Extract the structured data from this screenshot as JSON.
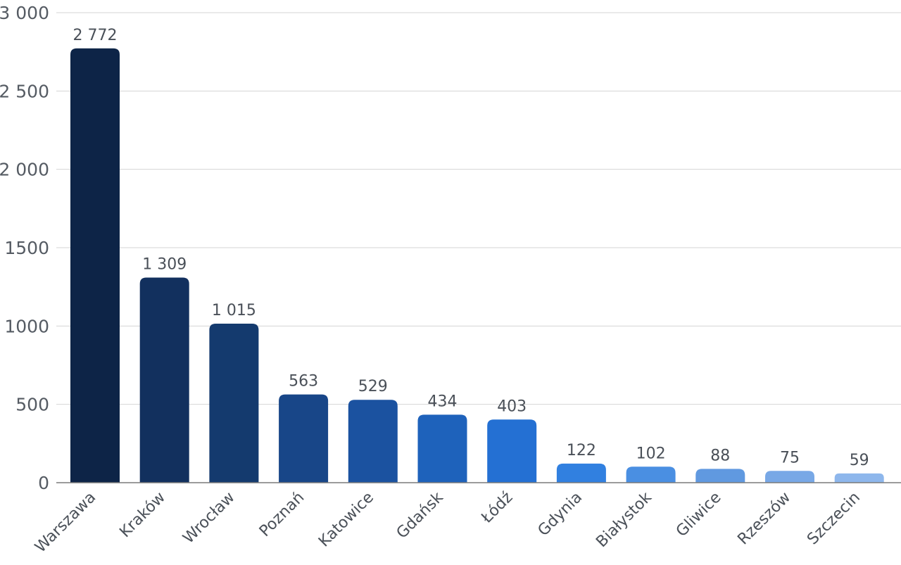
{
  "chart_data": {
    "type": "bar",
    "categories": [
      "Warszawa",
      "Kraków",
      "Wrocław",
      "Poznań",
      "Katowice",
      "Gdańsk",
      "Łódź",
      "Gdynia",
      "Białystok",
      "Gliwice",
      "Rzeszów",
      "Szczecin"
    ],
    "values": [
      2772,
      1309,
      1015,
      563,
      529,
      434,
      403,
      122,
      102,
      88,
      75,
      59
    ],
    "value_labels": [
      "2 772",
      "1 309",
      "1 015",
      "563",
      "529",
      "434",
      "403",
      "122",
      "102",
      "88",
      "75",
      "59"
    ],
    "ylim": [
      0,
      3000
    ],
    "yticks": [
      0,
      500,
      1000,
      1500,
      2000,
      2500,
      3000
    ],
    "ytick_labels": [
      "0",
      "500",
      "1000",
      "1500",
      "2 000",
      "2 500",
      "3 000"
    ],
    "grid": true,
    "colors": [
      "#0d2447",
      "#12305e",
      "#143a6e",
      "#184688",
      "#1b52a0",
      "#1e62bb",
      "#2470d3",
      "#3180e0",
      "#4a8fe2",
      "#6099e0",
      "#78a8e6",
      "#8eb7ec"
    ]
  }
}
